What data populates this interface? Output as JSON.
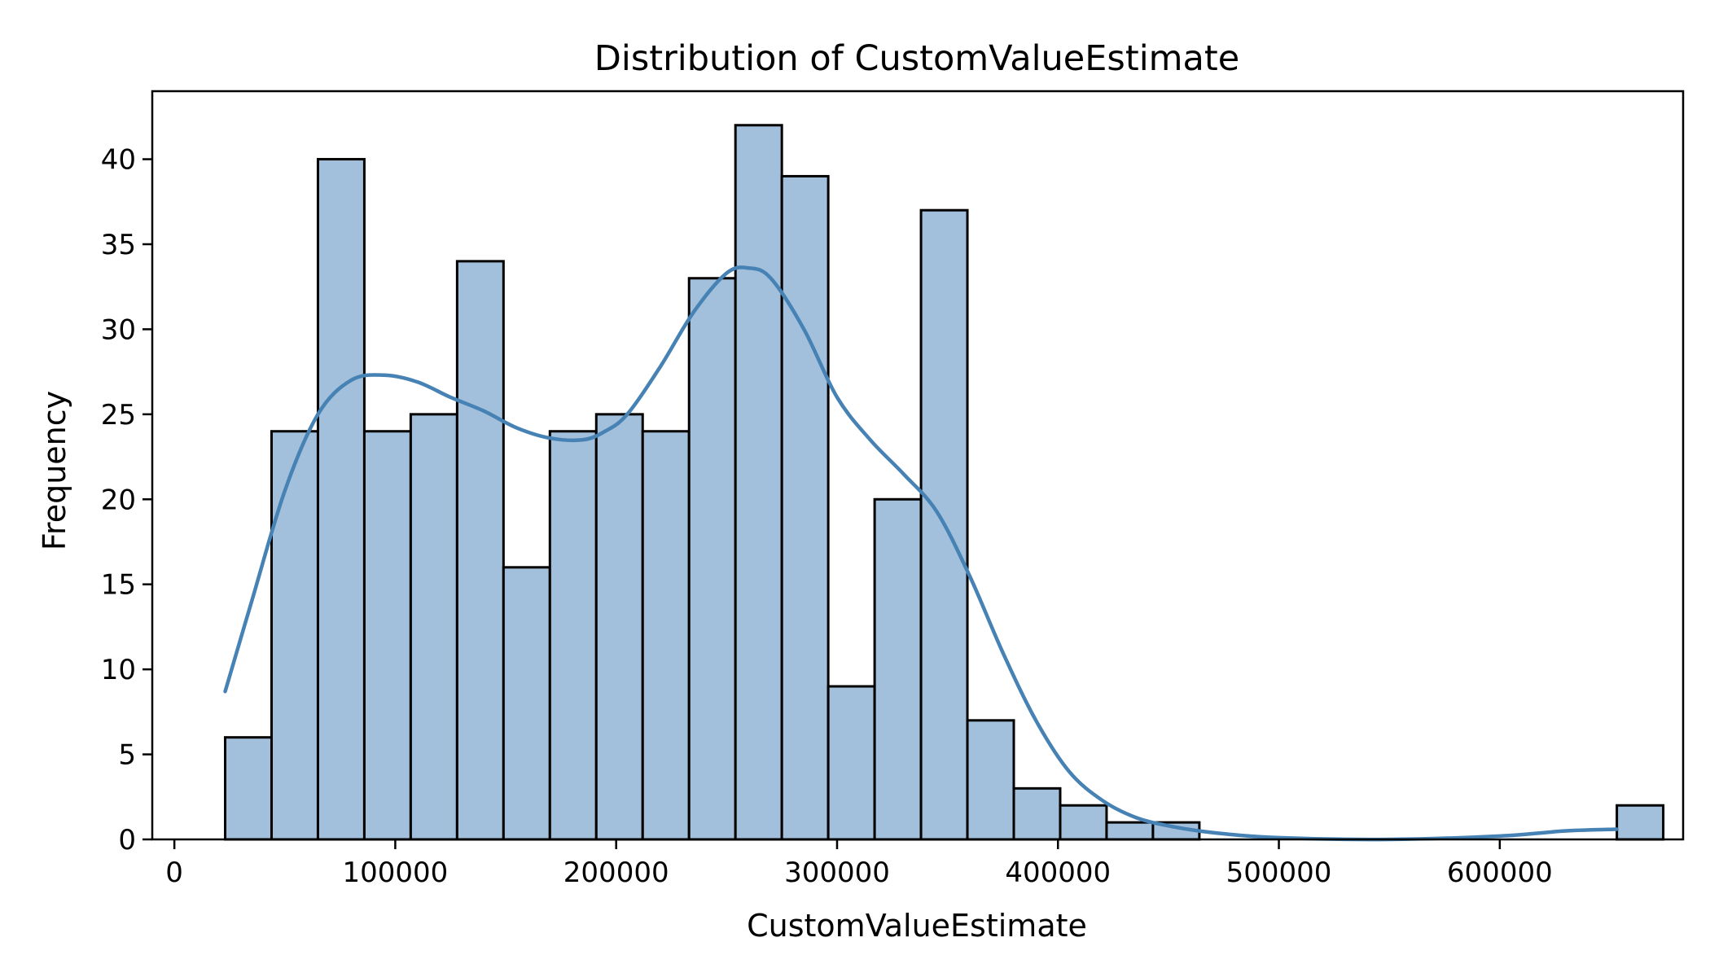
{
  "chart_data": {
    "type": "bar",
    "title": "Distribution of CustomValueEstimate",
    "xlabel": "CustomValueEstimate",
    "ylabel": "Frequency",
    "xlim": [
      -10000,
      683000
    ],
    "ylim": [
      0,
      44
    ],
    "xticks": [
      0,
      100000,
      200000,
      300000,
      400000,
      500000,
      600000
    ],
    "yticks": [
      0,
      5,
      10,
      15,
      20,
      25,
      30,
      35,
      40
    ],
    "bin_start": 23000,
    "bin_width": 21000,
    "counts": [
      6,
      24,
      40,
      24,
      25,
      34,
      16,
      24,
      25,
      24,
      33,
      42,
      39,
      9,
      20,
      37,
      7,
      3,
      2,
      1,
      1,
      0,
      0,
      0,
      0,
      0,
      0,
      0,
      0,
      0,
      2
    ],
    "kde": {
      "x": [
        23000,
        35000,
        50000,
        65000,
        80000,
        95000,
        110000,
        125000,
        140000,
        155000,
        170000,
        185000,
        195000,
        205000,
        220000,
        235000,
        250000,
        260000,
        270000,
        285000,
        300000,
        315000,
        330000,
        345000,
        360000,
        375000,
        390000,
        405000,
        420000,
        435000,
        450000,
        470000,
        500000,
        550000,
        600000,
        630000,
        653000
      ],
      "y": [
        8.7,
        14.0,
        20.5,
        25.0,
        27.0,
        27.3,
        26.9,
        26.0,
        25.2,
        24.2,
        23.6,
        23.5,
        24.0,
        25.0,
        27.8,
        31.0,
        33.3,
        33.6,
        33.0,
        30.0,
        26.0,
        23.5,
        21.5,
        19.3,
        15.5,
        11.0,
        7.0,
        4.0,
        2.3,
        1.3,
        0.8,
        0.4,
        0.1,
        0.0,
        0.2,
        0.5,
        0.6
      ]
    }
  }
}
